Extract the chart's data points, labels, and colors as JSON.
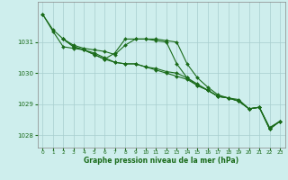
{
  "xlabel": "Graphe pression niveau de la mer (hPa)",
  "background_color": "#ceeeed",
  "line_color": "#1a6b1a",
  "grid_color": "#a8cece",
  "text_color": "#1a6b1a",
  "xlim": [
    -0.5,
    23.5
  ],
  "ylim": [
    1027.6,
    1032.3
  ],
  "yticks": [
    1028,
    1029,
    1030,
    1031
  ],
  "xticks": [
    0,
    1,
    2,
    3,
    4,
    5,
    6,
    7,
    8,
    9,
    10,
    11,
    12,
    13,
    14,
    15,
    16,
    17,
    18,
    19,
    20,
    21,
    22,
    23
  ],
  "series": [
    {
      "x": [
        0,
        1,
        2,
        3,
        4,
        5,
        6,
        7,
        8,
        9,
        10,
        11,
        12,
        13,
        14,
        15,
        16,
        17,
        18,
        19,
        20,
        21,
        22,
        23
      ],
      "y": [
        1031.9,
        1031.4,
        1031.1,
        1030.9,
        1030.8,
        1030.75,
        1030.7,
        1030.6,
        1030.9,
        1031.1,
        1031.1,
        1031.1,
        1031.05,
        1031.0,
        1030.3,
        1029.85,
        1029.55,
        1029.3,
        1029.2,
        1029.15,
        1028.85,
        1028.9,
        1028.25,
        1028.45
      ]
    },
    {
      "x": [
        0,
        1,
        2,
        3,
        4,
        5,
        6,
        7,
        8,
        9,
        10,
        11,
        12,
        13,
        14,
        15,
        16,
        17,
        18,
        19,
        20,
        21,
        22,
        23
      ],
      "y": [
        1031.9,
        1031.35,
        1030.85,
        1030.8,
        1030.75,
        1030.65,
        1030.5,
        1030.35,
        1030.3,
        1030.3,
        1030.2,
        1030.15,
        1030.05,
        1030.0,
        1029.85,
        1029.65,
        1029.45,
        1029.25,
        1029.2,
        1029.1,
        1028.85,
        1028.9,
        1028.2,
        1028.45
      ]
    },
    {
      "x": [
        2,
        3,
        4,
        5,
        6,
        7,
        8,
        9,
        10,
        11,
        12,
        13,
        14,
        15,
        16,
        17,
        18,
        19,
        20,
        21,
        22,
        23
      ],
      "y": [
        1031.1,
        1030.85,
        1030.75,
        1030.6,
        1030.45,
        1030.65,
        1031.1,
        1031.1,
        1031.1,
        1031.05,
        1031.0,
        1030.3,
        1029.85,
        1029.6,
        1029.45,
        1029.25,
        1029.2,
        1029.1,
        1028.85,
        1028.9,
        1028.2,
        1028.45
      ]
    },
    {
      "x": [
        2,
        3,
        4,
        5,
        6,
        7,
        8,
        9,
        10,
        11,
        12,
        13,
        14,
        15,
        16,
        17,
        18,
        19,
        20,
        21,
        22,
        23
      ],
      "y": [
        1031.1,
        1030.85,
        1030.75,
        1030.6,
        1030.45,
        1030.35,
        1030.3,
        1030.3,
        1030.2,
        1030.1,
        1030.0,
        1029.9,
        1029.8,
        1029.6,
        1029.45,
        1029.25,
        1029.2,
        1029.1,
        1028.85,
        1028.9,
        1028.2,
        1028.45
      ]
    }
  ]
}
